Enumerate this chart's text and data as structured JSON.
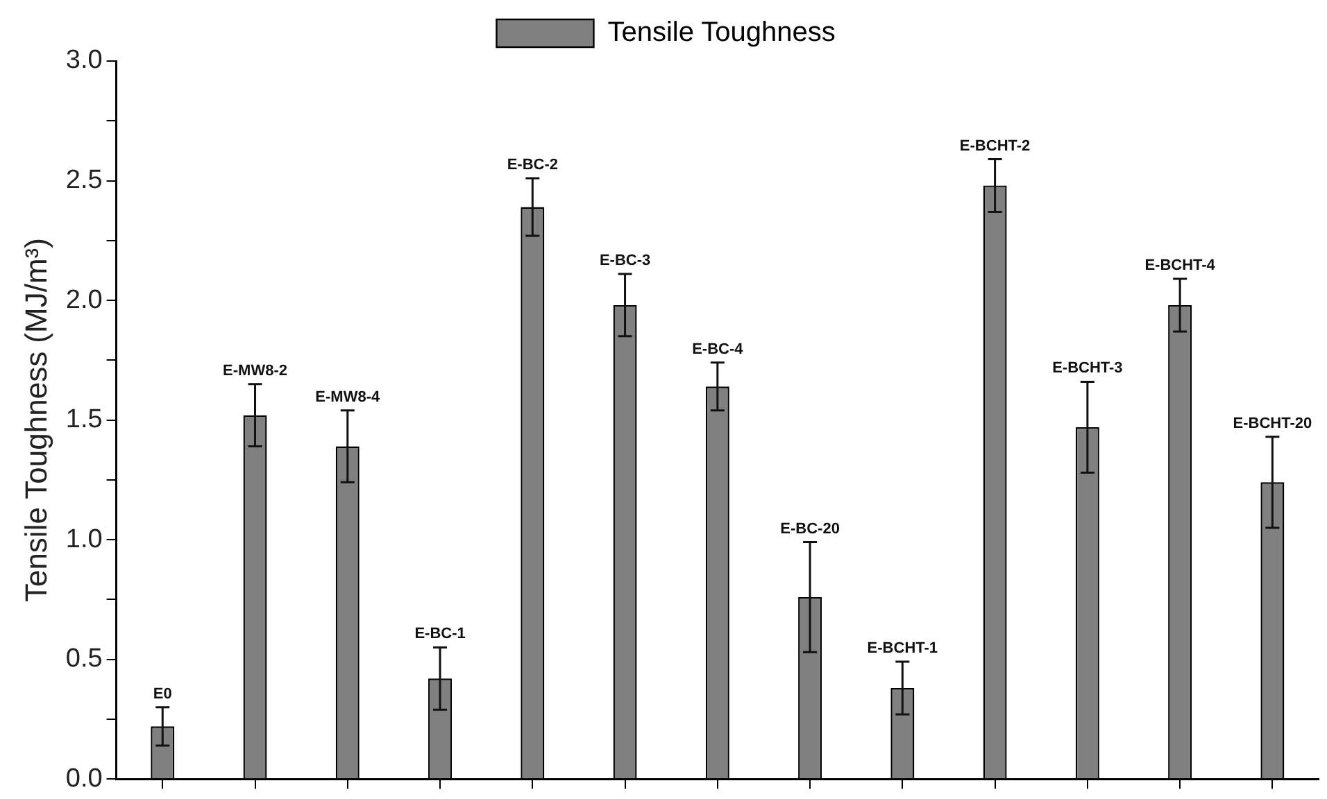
{
  "chart_data": {
    "type": "bar",
    "ylabel": "Tensile Toughness (MJ/m³)",
    "categories": [
      "E0",
      "E-MW8-2",
      "E-MW8-4",
      "E-BC-1",
      "E-BC-2",
      "E-BC-3",
      "E-BC-4",
      "E-BC-20",
      "E-BCHT-1",
      "E-BCHT-2",
      "E-BCHT-3",
      "E-BCHT-4",
      "E-BCHT-20"
    ],
    "series": [
      {
        "name": "Tensile Toughness",
        "color": "#808080",
        "values": [
          0.22,
          1.52,
          1.39,
          0.42,
          2.39,
          1.98,
          1.64,
          0.76,
          0.38,
          2.48,
          1.47,
          1.98,
          1.24
        ],
        "errors": [
          0.08,
          0.13,
          0.15,
          0.13,
          0.12,
          0.13,
          0.1,
          0.23,
          0.11,
          0.11,
          0.19,
          0.11,
          0.19
        ]
      }
    ],
    "ylim": [
      0,
      3
    ],
    "yticks": [
      {
        "value": 0,
        "label": "0.0"
      },
      {
        "value": 0.25,
        "label": null
      },
      0.5,
      {
        "value": 0.75,
        "label": null
      },
      {
        "value": 1,
        "label": "1.0"
      },
      {
        "value": 1.25,
        "label": null
      },
      1.5,
      {
        "value": 1.75,
        "label": null
      },
      {
        "value": 2,
        "label": "2.0"
      },
      {
        "value": 2.25,
        "label": null
      },
      2.5,
      {
        "value": 2.75,
        "label": null
      },
      {
        "value": 3,
        "label": "3.0"
      }
    ],
    "tick_labels": "y",
    "grid": false,
    "legend": "top"
  }
}
